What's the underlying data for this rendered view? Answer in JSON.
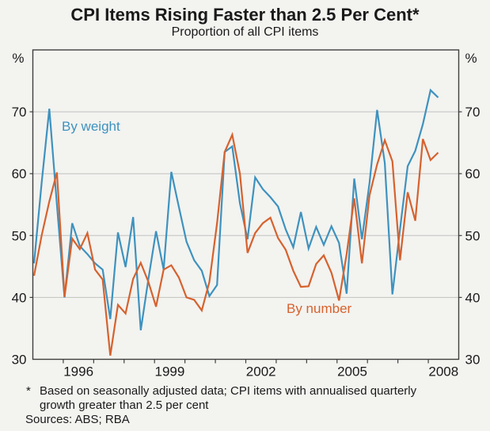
{
  "header": {
    "title": "CPI Items Rising Faster than 2.5 Per Cent*",
    "subtitle": "Proportion of all CPI items"
  },
  "chart_data": {
    "type": "line",
    "title": "CPI Items Rising Faster than 2.5 Per Cent*",
    "subtitle": "Proportion of all CPI items",
    "unit_label": "%",
    "ylim": [
      30,
      80
    ],
    "y_ticks": [
      30,
      40,
      50,
      60,
      70
    ],
    "grid_values": [
      40,
      50,
      60,
      70
    ],
    "x_tick_years": [
      1996,
      1997,
      1998,
      1999,
      2000,
      2001,
      2002,
      2003,
      2004,
      2005,
      2006,
      2007,
      2008
    ],
    "x_axis_labels": [
      "1996",
      "1999",
      "2002",
      "2005",
      "2008"
    ],
    "x_label_years": [
      1996,
      1999,
      2002,
      2005,
      2008
    ],
    "frequency": "quarterly",
    "legend_position": "inline",
    "grid": true,
    "series": [
      {
        "name": "By weight",
        "color": "#3E92BE",
        "values": [
          45.5,
          58.5,
          70.5,
          55,
          40,
          52,
          48.3,
          47,
          45.5,
          44.5,
          36.5,
          50.5,
          44.9,
          53,
          34.7,
          43,
          50.7,
          44.5,
          60.3,
          54.6,
          49,
          46,
          44.3,
          40.2,
          42,
          63.5,
          64.4,
          55.2,
          49.4,
          59.4,
          57.5,
          56.2,
          54.7,
          51,
          48.1,
          53.8,
          47.9,
          51.4,
          48.5,
          51.5,
          48.8,
          40.6,
          59.2,
          49.4,
          58.5,
          70.3,
          61.7,
          40.5,
          51,
          61.2,
          63.7,
          68,
          73.5,
          72.3
        ]
      },
      {
        "name": "By number",
        "color": "#D6622E",
        "values": [
          43.5,
          50,
          55.5,
          60.2,
          40.1,
          49.5,
          47.8,
          50.4,
          44.5,
          42.9,
          30.6,
          38.8,
          37.4,
          43,
          45.6,
          42.5,
          38.5,
          44.5,
          45.2,
          43.2,
          40,
          39.6,
          37.9,
          42.5,
          52,
          63.5,
          66.3,
          60,
          47.2,
          50.4,
          52,
          52.9,
          49.6,
          47.7,
          44.3,
          41.7,
          41.8,
          45.4,
          46.8,
          44,
          39.5,
          47,
          56,
          45.5,
          56.5,
          61.5,
          65.4,
          62,
          46,
          57,
          52.4,
          65.6,
          62.2,
          63.4
        ]
      }
    ],
    "colors": {
      "background": "#f3f3f0",
      "gridline": "#c2c2bf",
      "axis": "#3f3f3f",
      "text": "#1a1a1a"
    }
  },
  "footnote": {
    "marker": "*",
    "line1": "Based on seasonally adjusted data; CPI items with annualised quarterly",
    "line2": "growth greater than 2.5 per cent",
    "sources": "Sources: ABS; RBA"
  }
}
